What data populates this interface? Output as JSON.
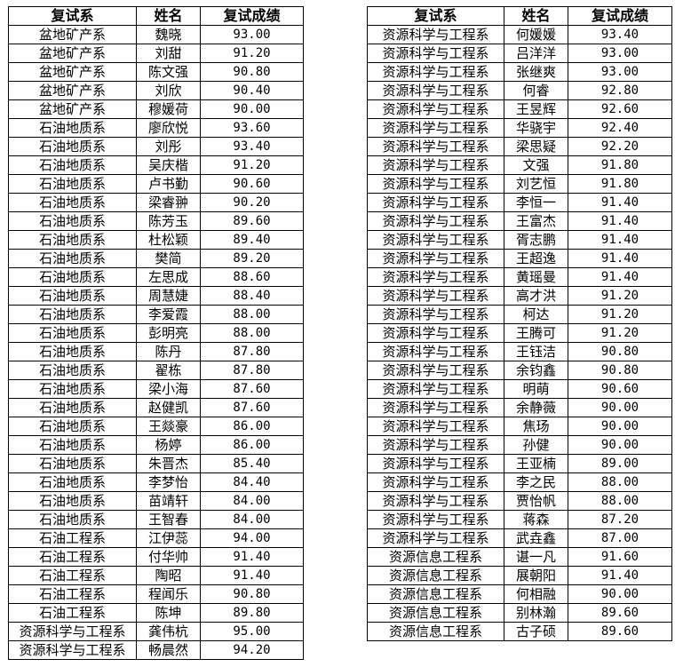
{
  "headers": [
    "复试系",
    "姓名",
    "复试成绩"
  ],
  "left_table": [
    [
      "盆地矿产系",
      "魏晓",
      "93.00"
    ],
    [
      "盆地矿产系",
      "刘甜",
      "91.20"
    ],
    [
      "盆地矿产系",
      "陈文强",
      "90.80"
    ],
    [
      "盆地矿产系",
      "刘欣",
      "90.40"
    ],
    [
      "盆地矿产系",
      "穆媛荷",
      "90.00"
    ],
    [
      "石油地质系",
      "廖欣悦",
      "93.60"
    ],
    [
      "石油地质系",
      "刘彤",
      "93.40"
    ],
    [
      "石油地质系",
      "吴庆楷",
      "91.20"
    ],
    [
      "石油地质系",
      "卢书勤",
      "90.60"
    ],
    [
      "石油地质系",
      "梁睿翀",
      "90.20"
    ],
    [
      "石油地质系",
      "陈芳玉",
      "89.60"
    ],
    [
      "石油地质系",
      "杜松颖",
      "89.40"
    ],
    [
      "石油地质系",
      "樊简",
      "89.20"
    ],
    [
      "石油地质系",
      "左思成",
      "88.60"
    ],
    [
      "石油地质系",
      "周慧婕",
      "88.40"
    ],
    [
      "石油地质系",
      "李爱霞",
      "88.00"
    ],
    [
      "石油地质系",
      "彭明亮",
      "88.00"
    ],
    [
      "石油地质系",
      "陈丹",
      "87.80"
    ],
    [
      "石油地质系",
      "翟栋",
      "87.80"
    ],
    [
      "石油地质系",
      "梁小海",
      "87.60"
    ],
    [
      "石油地质系",
      "赵健凯",
      "87.60"
    ],
    [
      "石油地质系",
      "王燚豪",
      "86.00"
    ],
    [
      "石油地质系",
      "杨婷",
      "86.00"
    ],
    [
      "石油地质系",
      "朱晋杰",
      "85.40"
    ],
    [
      "石油地质系",
      "李梦怡",
      "84.40"
    ],
    [
      "石油地质系",
      "苗靖轩",
      "84.00"
    ],
    [
      "石油地质系",
      "王智春",
      "84.00"
    ],
    [
      "石油工程系",
      "江伊蕊",
      "94.00"
    ],
    [
      "石油工程系",
      "付华帅",
      "91.40"
    ],
    [
      "石油工程系",
      "陶昭",
      "91.40"
    ],
    [
      "石油工程系",
      "程闻乐",
      "90.80"
    ],
    [
      "石油工程系",
      "陈坤",
      "89.80"
    ],
    [
      "资源科学与工程系",
      "龚伟杭",
      "95.00"
    ],
    [
      "资源科学与工程系",
      "畅晨然",
      "94.20"
    ]
  ],
  "right_table": [
    [
      "资源科学与工程系",
      "何媛媛",
      "93.40"
    ],
    [
      "资源科学与工程系",
      "吕洋洋",
      "93.00"
    ],
    [
      "资源科学与工程系",
      "张继爽",
      "93.00"
    ],
    [
      "资源科学与工程系",
      "何睿",
      "92.80"
    ],
    [
      "资源科学与工程系",
      "王昱辉",
      "92.60"
    ],
    [
      "资源科学与工程系",
      "华骁宇",
      "92.40"
    ],
    [
      "资源科学与工程系",
      "梁思疑",
      "92.20"
    ],
    [
      "资源科学与工程系",
      "文强",
      "91.80"
    ],
    [
      "资源科学与工程系",
      "刘艺恒",
      "91.80"
    ],
    [
      "资源科学与工程系",
      "李恒一",
      "91.40"
    ],
    [
      "资源科学与工程系",
      "王富杰",
      "91.40"
    ],
    [
      "资源科学与工程系",
      "胥志鹏",
      "91.40"
    ],
    [
      "资源科学与工程系",
      "王超逸",
      "91.40"
    ],
    [
      "资源科学与工程系",
      "黄瑶曼",
      "91.40"
    ],
    [
      "资源科学与工程系",
      "高才洪",
      "91.20"
    ],
    [
      "资源科学与工程系",
      "柯达",
      "91.20"
    ],
    [
      "资源科学与工程系",
      "王腾可",
      "91.20"
    ],
    [
      "资源科学与工程系",
      "王钰洁",
      "90.80"
    ],
    [
      "资源科学与工程系",
      "余钧鑫",
      "90.80"
    ],
    [
      "资源科学与工程系",
      "明萌",
      "90.60"
    ],
    [
      "资源科学与工程系",
      "余静薇",
      "90.00"
    ],
    [
      "资源科学与工程系",
      "焦玚",
      "90.00"
    ],
    [
      "资源科学与工程系",
      "孙健",
      "90.00"
    ],
    [
      "资源科学与工程系",
      "王亚楠",
      "89.00"
    ],
    [
      "资源科学与工程系",
      "李之民",
      "88.00"
    ],
    [
      "资源科学与工程系",
      "贾怡帆",
      "88.00"
    ],
    [
      "资源科学与工程系",
      "蒋森",
      "87.20"
    ],
    [
      "资源科学与工程系",
      "武垚鑫",
      "87.00"
    ],
    [
      "资源信息工程系",
      "谌一凡",
      "91.60"
    ],
    [
      "资源信息工程系",
      "展朝阳",
      "91.40"
    ],
    [
      "资源信息工程系",
      "何相融",
      "90.00"
    ],
    [
      "资源信息工程系",
      "别林瀚",
      "89.60"
    ],
    [
      "资源信息工程系",
      "古子硕",
      "89.60"
    ]
  ]
}
